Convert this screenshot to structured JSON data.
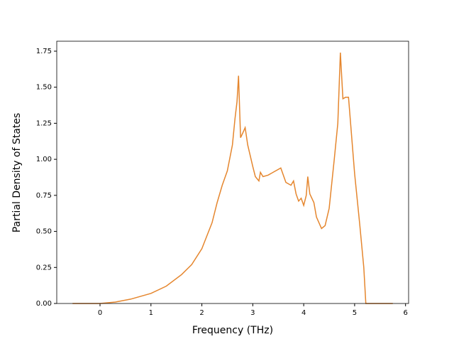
{
  "chart_data": {
    "type": "line",
    "xlabel": "Frequency (THz)",
    "ylabel": "Partial Density of States",
    "x": [
      -0.54,
      0,
      0.3,
      0.6,
      1.0,
      1.3,
      1.6,
      1.8,
      2.0,
      2.1,
      2.2,
      2.3,
      2.4,
      2.5,
      2.6,
      2.65,
      2.69,
      2.72,
      2.76,
      2.8,
      2.85,
      2.9,
      3.0,
      3.05,
      3.12,
      3.15,
      3.2,
      3.3,
      3.4,
      3.55,
      3.65,
      3.75,
      3.8,
      3.85,
      3.9,
      3.95,
      4.0,
      4.05,
      4.08,
      4.12,
      4.2,
      4.25,
      4.35,
      4.42,
      4.5,
      4.6,
      4.67,
      4.72,
      4.77,
      4.82,
      4.88,
      5.0,
      5.1,
      5.18,
      5.22,
      5.75
    ],
    "series": [
      {
        "color": "#e5862e",
        "values": [
          0,
          0,
          0.01,
          0.03,
          0.07,
          0.12,
          0.2,
          0.27,
          0.38,
          0.47,
          0.56,
          0.7,
          0.82,
          0.92,
          1.1,
          1.28,
          1.4,
          1.58,
          1.15,
          1.18,
          1.22,
          1.1,
          0.95,
          0.88,
          0.85,
          0.91,
          0.88,
          0.89,
          0.91,
          0.94,
          0.84,
          0.82,
          0.85,
          0.76,
          0.71,
          0.73,
          0.68,
          0.75,
          0.88,
          0.76,
          0.7,
          0.6,
          0.52,
          0.54,
          0.66,
          1.0,
          1.25,
          1.74,
          1.42,
          1.43,
          1.43,
          0.9,
          0.55,
          0.25,
          0,
          0
        ]
      }
    ],
    "xlim": [
      -0.85,
      6.06
    ],
    "ylim": [
      0,
      1.819
    ],
    "xticks": [
      0,
      1,
      2,
      3,
      4,
      5,
      6
    ],
    "yticks": [
      {
        "value": 0,
        "label": "0.00"
      },
      {
        "value": 0.25,
        "label": "0.25"
      },
      {
        "value": 0.5,
        "label": "0.50"
      },
      {
        "value": 0.75,
        "label": "0.75"
      },
      {
        "value": 1,
        "label": "1.00"
      },
      {
        "value": 1.25,
        "label": "1.25"
      },
      {
        "value": 1.5,
        "label": "1.50"
      },
      {
        "value": 1.75,
        "label": "1.75"
      }
    ],
    "grid": false
  }
}
